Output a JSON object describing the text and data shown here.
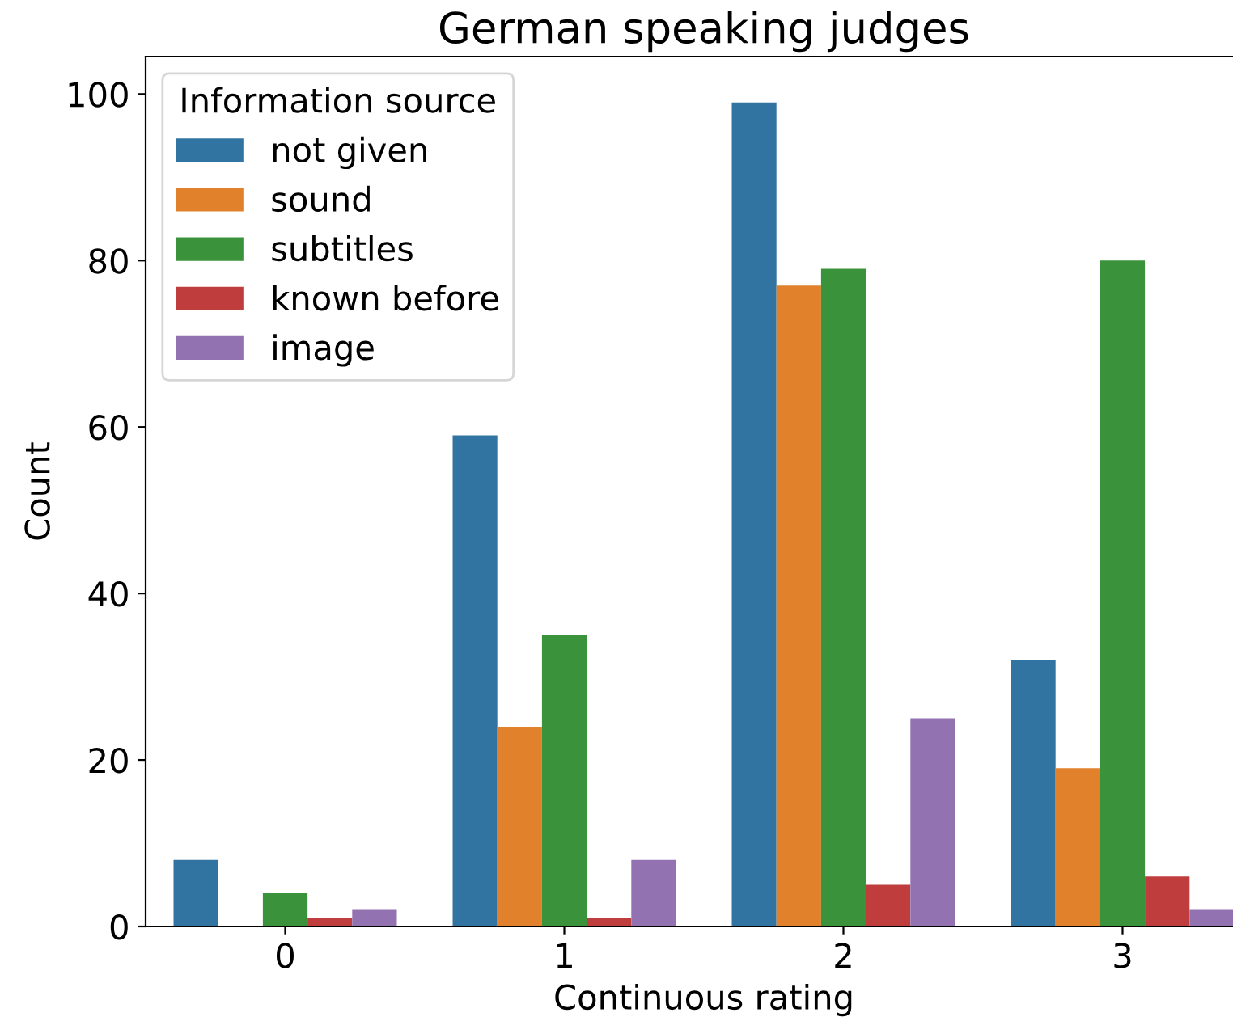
{
  "chart_data": {
    "type": "bar",
    "title": "German speaking judges",
    "xlabel": "Continuous rating",
    "ylabel": "Count",
    "legend_title": "Information source",
    "categories": [
      "0",
      "1",
      "2",
      "3"
    ],
    "series": [
      {
        "name": "not given",
        "color": "#3274a1",
        "values": [
          8,
          59,
          99,
          32
        ]
      },
      {
        "name": "sound",
        "color": "#e1812c",
        "values": [
          0,
          24,
          77,
          19
        ]
      },
      {
        "name": "subtitles",
        "color": "#3a923a",
        "values": [
          4,
          35,
          79,
          80
        ]
      },
      {
        "name": "known before",
        "color": "#c03d3e",
        "values": [
          1,
          1,
          5,
          6
        ]
      },
      {
        "name": "image",
        "color": "#9372b2",
        "values": [
          2,
          8,
          25,
          2
        ]
      }
    ],
    "ylim": [
      0,
      104.5
    ],
    "yticks": [
      0,
      20,
      40,
      60,
      80,
      100
    ],
    "grid": false,
    "legend": "top left"
  }
}
